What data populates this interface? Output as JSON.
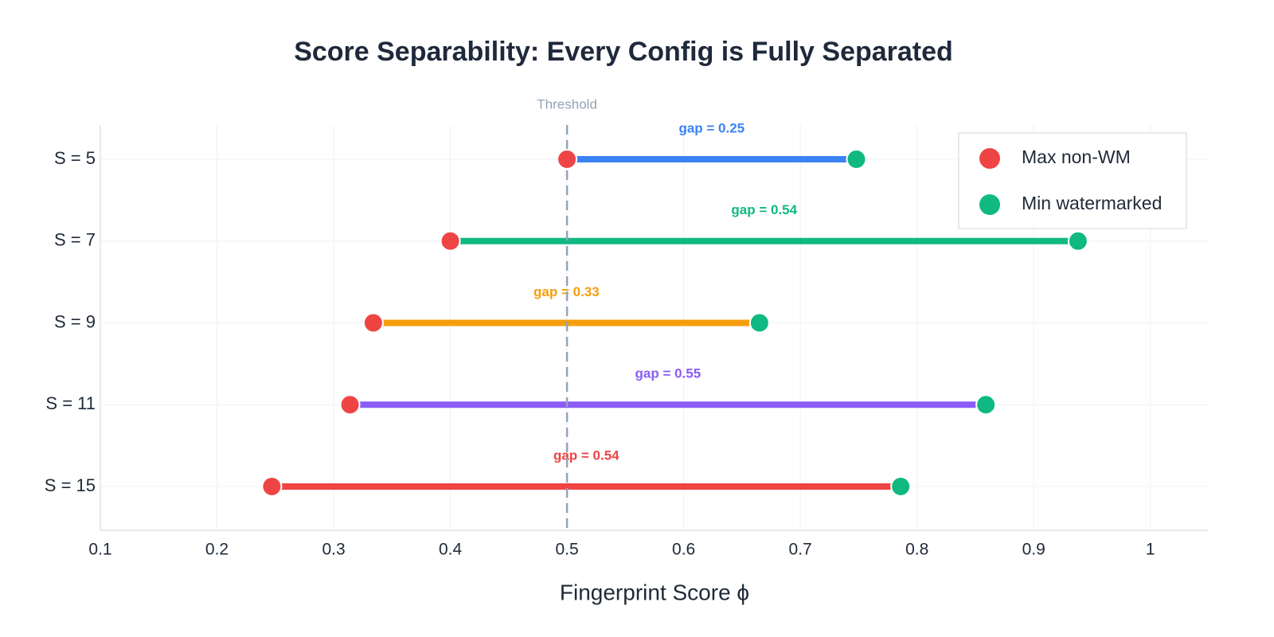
{
  "chart_data": {
    "type": "dumbbell",
    "title": "Score Separability: Every Config is Fully Separated",
    "xlabel": "Fingerprint Score ϕ",
    "categories": [
      "S = 5",
      "S = 7",
      "S = 9",
      "S = 11",
      "S = 15"
    ],
    "series": [
      {
        "name": "Max non-WM",
        "color": "#ef4444",
        "values": [
          0.5,
          0.4,
          0.334,
          0.314,
          0.247
        ]
      },
      {
        "name": "Min watermarked",
        "color": "#10b981",
        "values": [
          0.748,
          0.938,
          0.665,
          0.859,
          0.786
        ]
      }
    ],
    "line_colors": [
      "#3b82f6",
      "#10b981",
      "#f59e0b",
      "#8b5cf6",
      "#ef4444"
    ],
    "annotations": [
      "gap = 0.25",
      "gap = 0.54",
      "gap = 0.33",
      "gap = 0.55",
      "gap = 0.54"
    ],
    "threshold": {
      "value": 0.5,
      "label": "Threshold"
    },
    "xlim": [
      0.1,
      1.05
    ],
    "xticks": [
      0.1,
      0.2,
      0.3,
      0.4,
      0.5,
      0.6,
      0.7,
      0.8,
      0.9,
      1
    ],
    "grid": true,
    "legend": "top-right"
  }
}
